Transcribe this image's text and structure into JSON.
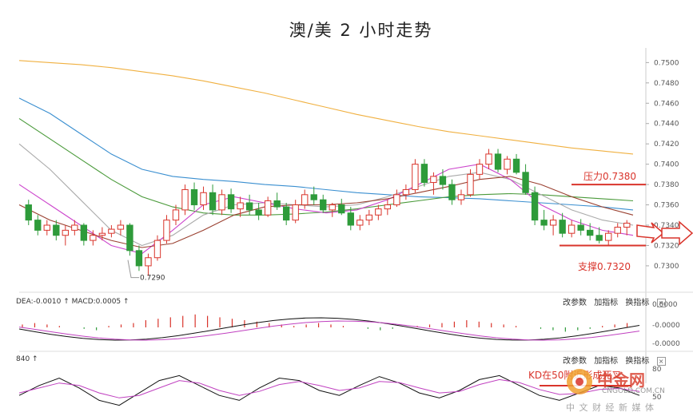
{
  "title": "澳/美 2 小时走势",
  "price_axis": {
    "ticks": [
      "0.7500",
      "0.7480",
      "0.7460",
      "0.7440",
      "0.7420",
      "0.7400",
      "0.7380",
      "0.7360",
      "0.7340",
      "0.7320",
      "0.7300"
    ]
  },
  "macd_panel": {
    "label": "DEA:-0.0010 ↑ MACD:0.0005 ↑",
    "ticks": [
      "0.0000",
      "-0.0000",
      "-0.0000"
    ]
  },
  "kd_panel": {
    "label": "840 ↑",
    "ticks": [
      "80",
      "50"
    ]
  },
  "toolbar": {
    "params": "改参数",
    "add": "加指标",
    "switch": "换指标",
    "close": "×"
  },
  "annotations": {
    "resistance": "压力0.7380",
    "support": "支撑0.7320",
    "low": "0.7290",
    "kd": "KD在50附近形成死叉"
  },
  "watermark": {
    "name": "中金网",
    "url": "CNGOLD.COM.CN",
    "sub": "中 文 财 经 新 媒 体"
  },
  "colors": {
    "up": "#d9342b",
    "down": "#2e9b3a",
    "ma_orange": "#f0b040",
    "ma_blue": "#3a8fd0",
    "ma_green": "#4a9a3a",
    "ma_gray": "#aaaaaa",
    "ma_purple": "#cc44cc",
    "ma_brown": "#9a4030"
  },
  "chart_data": {
    "type": "candlestick",
    "ylim": [
      0.7285,
      0.7505
    ],
    "support": 0.732,
    "resistance": 0.738,
    "low_marker": 0.729,
    "candles": [
      [
        0.736,
        0.7365,
        0.734,
        0.7345
      ],
      [
        0.7345,
        0.735,
        0.733,
        0.7335
      ],
      [
        0.7335,
        0.7345,
        0.733,
        0.734
      ],
      [
        0.734,
        0.7345,
        0.7325,
        0.733
      ],
      [
        0.733,
        0.734,
        0.732,
        0.7335
      ],
      [
        0.7335,
        0.7345,
        0.733,
        0.734
      ],
      [
        0.734,
        0.7342,
        0.732,
        0.7325
      ],
      [
        0.7325,
        0.7335,
        0.732,
        0.733
      ],
      [
        0.733,
        0.7338,
        0.7325,
        0.7332
      ],
      [
        0.7332,
        0.734,
        0.7328,
        0.7336
      ],
      [
        0.7336,
        0.7345,
        0.733,
        0.734
      ],
      [
        0.734,
        0.7342,
        0.731,
        0.7315
      ],
      [
        0.7315,
        0.732,
        0.7295,
        0.73
      ],
      [
        0.73,
        0.7312,
        0.729,
        0.7308
      ],
      [
        0.7308,
        0.733,
        0.7305,
        0.7325
      ],
      [
        0.7325,
        0.735,
        0.7322,
        0.7345
      ],
      [
        0.7345,
        0.736,
        0.734,
        0.7355
      ],
      [
        0.7355,
        0.738,
        0.735,
        0.7375
      ],
      [
        0.7375,
        0.7382,
        0.7355,
        0.736
      ],
      [
        0.736,
        0.7378,
        0.7355,
        0.7372
      ],
      [
        0.7372,
        0.738,
        0.735,
        0.7355
      ],
      [
        0.7355,
        0.7375,
        0.735,
        0.737
      ],
      [
        0.737,
        0.7376,
        0.7352,
        0.7356
      ],
      [
        0.7356,
        0.7368,
        0.7348,
        0.7362
      ],
      [
        0.7362,
        0.737,
        0.735,
        0.7355
      ],
      [
        0.7355,
        0.7362,
        0.7345,
        0.735
      ],
      [
        0.735,
        0.7368,
        0.7348,
        0.7364
      ],
      [
        0.7364,
        0.7372,
        0.7355,
        0.7358
      ],
      [
        0.7358,
        0.7362,
        0.734,
        0.7345
      ],
      [
        0.7345,
        0.7365,
        0.7342,
        0.736
      ],
      [
        0.736,
        0.7375,
        0.7356,
        0.737
      ],
      [
        0.737,
        0.7378,
        0.736,
        0.7365
      ],
      [
        0.7365,
        0.737,
        0.7352,
        0.7355
      ],
      [
        0.7355,
        0.7362,
        0.7348,
        0.736
      ],
      [
        0.736,
        0.7366,
        0.735,
        0.7352
      ],
      [
        0.7352,
        0.7358,
        0.7335,
        0.734
      ],
      [
        0.734,
        0.735,
        0.7335,
        0.7345
      ],
      [
        0.7345,
        0.7355,
        0.734,
        0.735
      ],
      [
        0.735,
        0.736,
        0.7345,
        0.7356
      ],
      [
        0.7356,
        0.7365,
        0.735,
        0.736
      ],
      [
        0.736,
        0.7375,
        0.7358,
        0.737
      ],
      [
        0.737,
        0.738,
        0.7365,
        0.7375
      ],
      [
        0.7375,
        0.7405,
        0.7372,
        0.74
      ],
      [
        0.74,
        0.7405,
        0.7378,
        0.7382
      ],
      [
        0.7382,
        0.7392,
        0.737,
        0.7388
      ],
      [
        0.7388,
        0.7395,
        0.7375,
        0.738
      ],
      [
        0.738,
        0.7385,
        0.736,
        0.7365
      ],
      [
        0.7365,
        0.7375,
        0.736,
        0.737
      ],
      [
        0.737,
        0.7395,
        0.7368,
        0.739
      ],
      [
        0.739,
        0.7405,
        0.7385,
        0.74
      ],
      [
        0.74,
        0.7415,
        0.7395,
        0.741
      ],
      [
        0.741,
        0.7415,
        0.7392,
        0.7395
      ],
      [
        0.7395,
        0.7408,
        0.739,
        0.7405
      ],
      [
        0.7405,
        0.741,
        0.739,
        0.7392
      ],
      [
        0.7392,
        0.74,
        0.737,
        0.7372
      ],
      [
        0.7372,
        0.7378,
        0.734,
        0.7345
      ],
      [
        0.7345,
        0.7355,
        0.7335,
        0.734
      ],
      [
        0.734,
        0.735,
        0.733,
        0.7345
      ],
      [
        0.7345,
        0.7352,
        0.7328,
        0.7332
      ],
      [
        0.7332,
        0.7345,
        0.7328,
        0.734
      ],
      [
        0.734,
        0.7346,
        0.733,
        0.7335
      ],
      [
        0.7335,
        0.7342,
        0.7325,
        0.733
      ],
      [
        0.733,
        0.7338,
        0.7322,
        0.7325
      ],
      [
        0.7325,
        0.7335,
        0.732,
        0.7332
      ],
      [
        0.7332,
        0.7342,
        0.7328,
        0.7338
      ],
      [
        0.7338,
        0.7345,
        0.733,
        0.7342
      ]
    ],
    "ma_lines": {
      "orange": [
        0.7502,
        0.75,
        0.7498,
        0.7495,
        0.7491,
        0.7487,
        0.7482,
        0.7476,
        0.747,
        0.7463,
        0.7456,
        0.7449,
        0.7443,
        0.7437,
        0.7432,
        0.7428,
        0.7424,
        0.742,
        0.7416,
        0.7413,
        0.741
      ],
      "blue": [
        0.7465,
        0.745,
        0.743,
        0.741,
        0.7395,
        0.7388,
        0.7385,
        0.7383,
        0.738,
        0.7378,
        0.7375,
        0.7372,
        0.737,
        0.7368,
        0.7367,
        0.7366,
        0.7364,
        0.7362,
        0.736,
        0.7358,
        0.7355
      ],
      "green": [
        0.7445,
        0.7425,
        0.7405,
        0.7385,
        0.7368,
        0.7358,
        0.7352,
        0.735,
        0.735,
        0.7351,
        0.7353,
        0.7356,
        0.736,
        0.7364,
        0.7368,
        0.737,
        0.7371,
        0.737,
        0.7368,
        0.7366,
        0.7364
      ],
      "gray": [
        0.742,
        0.7395,
        0.7365,
        0.7335,
        0.732,
        0.733,
        0.735,
        0.736,
        0.7362,
        0.736,
        0.7358,
        0.736,
        0.7368,
        0.7378,
        0.7388,
        0.7392,
        0.7385,
        0.737,
        0.7355,
        0.7345,
        0.734
      ],
      "purple": [
        0.738,
        0.736,
        0.734,
        0.732,
        0.7312,
        0.7335,
        0.736,
        0.7368,
        0.7362,
        0.7356,
        0.7352,
        0.7355,
        0.7365,
        0.738,
        0.7395,
        0.74,
        0.7385,
        0.736,
        0.7345,
        0.7335,
        0.733
      ],
      "brown": [
        0.736,
        0.7345,
        0.7335,
        0.7325,
        0.7318,
        0.7322,
        0.7335,
        0.735,
        0.7358,
        0.736,
        0.736,
        0.7362,
        0.7366,
        0.7372,
        0.7378,
        0.7385,
        0.7388,
        0.738,
        0.7368,
        0.7358,
        0.735
      ]
    },
    "macd_hist": [
      0.2,
      0.3,
      0.2,
      0.1,
      0.0,
      -0.1,
      -0.2,
      0.1,
      0.2,
      0.3,
      0.5,
      0.6,
      0.7,
      0.8,
      0.9,
      0.8,
      0.7,
      0.6,
      0.5,
      0.4,
      0.3,
      0.2,
      0.1,
      0.2,
      0.3,
      0.2,
      0.1,
      0.0,
      -0.1,
      -0.2,
      -0.1,
      0.0,
      0.1,
      0.2,
      0.3,
      0.4,
      0.5,
      0.4,
      0.3,
      0.2,
      0.1,
      0.0,
      -0.1,
      -0.2,
      -0.3,
      -0.2,
      -0.1,
      0.1,
      0.2,
      0.3
    ],
    "kd_k": [
      40,
      60,
      75,
      55,
      30,
      20,
      45,
      70,
      80,
      60,
      40,
      30,
      55,
      75,
      70,
      50,
      40,
      60,
      78,
      65,
      45,
      35,
      50,
      72,
      80,
      60,
      40,
      30,
      45,
      60,
      55,
      40
    ],
    "kd_d": [
      45,
      55,
      65,
      60,
      45,
      35,
      40,
      55,
      70,
      65,
      50,
      40,
      48,
      62,
      68,
      60,
      50,
      55,
      68,
      66,
      55,
      45,
      48,
      62,
      72,
      66,
      52,
      42,
      44,
      52,
      54,
      48
    ]
  }
}
